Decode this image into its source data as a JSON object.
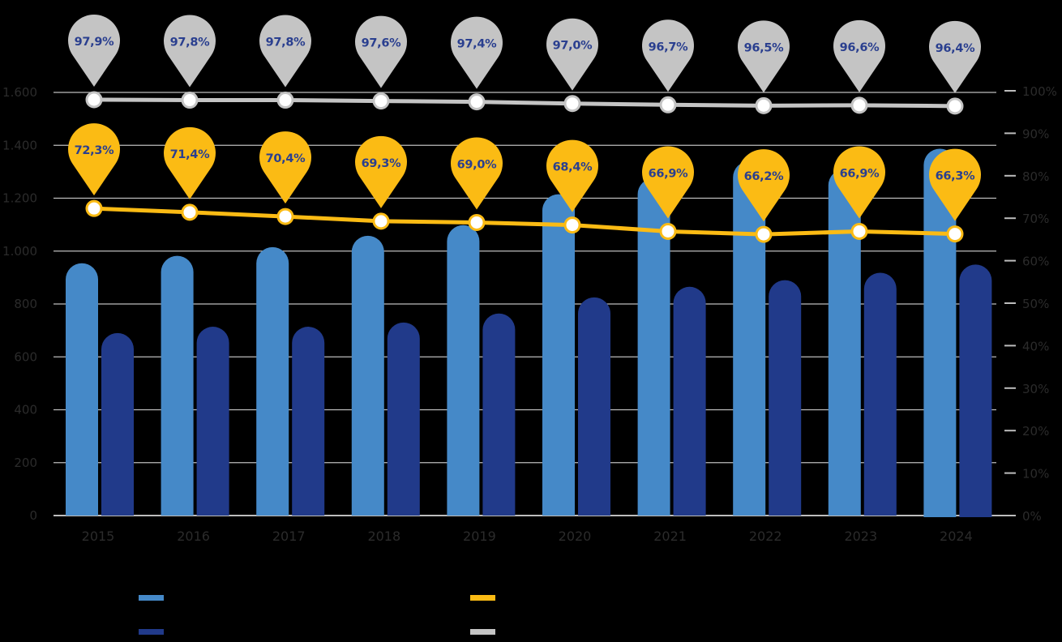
{
  "colors": {
    "background": "#000000",
    "series_light_bar": "#4589c8",
    "series_dark_bar": "#213a8a",
    "line_yellow": "#fbbb14",
    "line_gray": "#c4c4c4",
    "gridline": "#bdbdbd",
    "pin_text": "#2a3f8f",
    "axis_text": "#2b2b2b",
    "marker_fill": "#ffffff"
  },
  "chart_data": {
    "type": "bar",
    "title": "",
    "xlabel": "",
    "ylabel": "",
    "ylabel_right": "",
    "categories": [
      "2015",
      "2016",
      "2017",
      "2018",
      "2019",
      "2020",
      "2021",
      "2022",
      "2023",
      "2024"
    ],
    "series": [
      {
        "name": "",
        "type": "bar",
        "axis": "left",
        "color": "#4589c8",
        "values": [
          954,
          982,
          1015,
          1058,
          1098,
          1215,
          1276,
          1340,
          1310,
          1387
        ]
      },
      {
        "name": "",
        "type": "bar",
        "axis": "left",
        "color": "#213a8a",
        "values": [
          690,
          714,
          714,
          730,
          764,
          825,
          865,
          890,
          918,
          949
        ]
      },
      {
        "name": "",
        "type": "line",
        "axis": "right",
        "color": "#fbbb14",
        "values": [
          72.3,
          71.4,
          70.4,
          69.3,
          69.0,
          68.4,
          66.9,
          66.2,
          66.9,
          66.3
        ],
        "labels": [
          "72,3%",
          "71,4%",
          "70,4%",
          "69,3%",
          "69,0%",
          "68,4%",
          "66,9%",
          "66,2%",
          "66,9%",
          "66,3%"
        ]
      },
      {
        "name": "",
        "type": "line",
        "axis": "right",
        "color": "#c4c4c4",
        "values": [
          97.9,
          97.8,
          97.8,
          97.6,
          97.4,
          97.0,
          96.7,
          96.5,
          96.6,
          96.4
        ],
        "labels": [
          "97,9%",
          "97,8%",
          "97,8%",
          "97,6%",
          "97,4%",
          "97,0%",
          "96,7%",
          "96,5%",
          "96,6%",
          "96,4%"
        ]
      }
    ],
    "y_left": {
      "ylim": [
        0,
        1600
      ],
      "ticks": [
        0,
        200,
        400,
        600,
        800,
        1000,
        1200,
        1400,
        1600
      ],
      "tick_labels": [
        "0",
        "200",
        "400",
        "600",
        "800",
        "1.000",
        "1.200",
        "1.400",
        "1.600"
      ]
    },
    "y_right": {
      "ylim": [
        0,
        100
      ],
      "ticks": [
        0,
        10,
        20,
        30,
        40,
        50,
        60,
        70,
        80,
        90,
        100
      ],
      "tick_labels": [
        "0%",
        "10%",
        "20%",
        "30%",
        "40%",
        "50%",
        "60%",
        "70%",
        "80%",
        "90%",
        "100%"
      ]
    },
    "grid": true,
    "legend_position": "bottom",
    "legend": [
      {
        "label": "",
        "color": "#4589c8"
      },
      {
        "label": "",
        "color": "#213a8a"
      },
      {
        "label": "",
        "color": "#fbbb14"
      },
      {
        "label": "",
        "color": "#c4c4c4"
      }
    ]
  }
}
